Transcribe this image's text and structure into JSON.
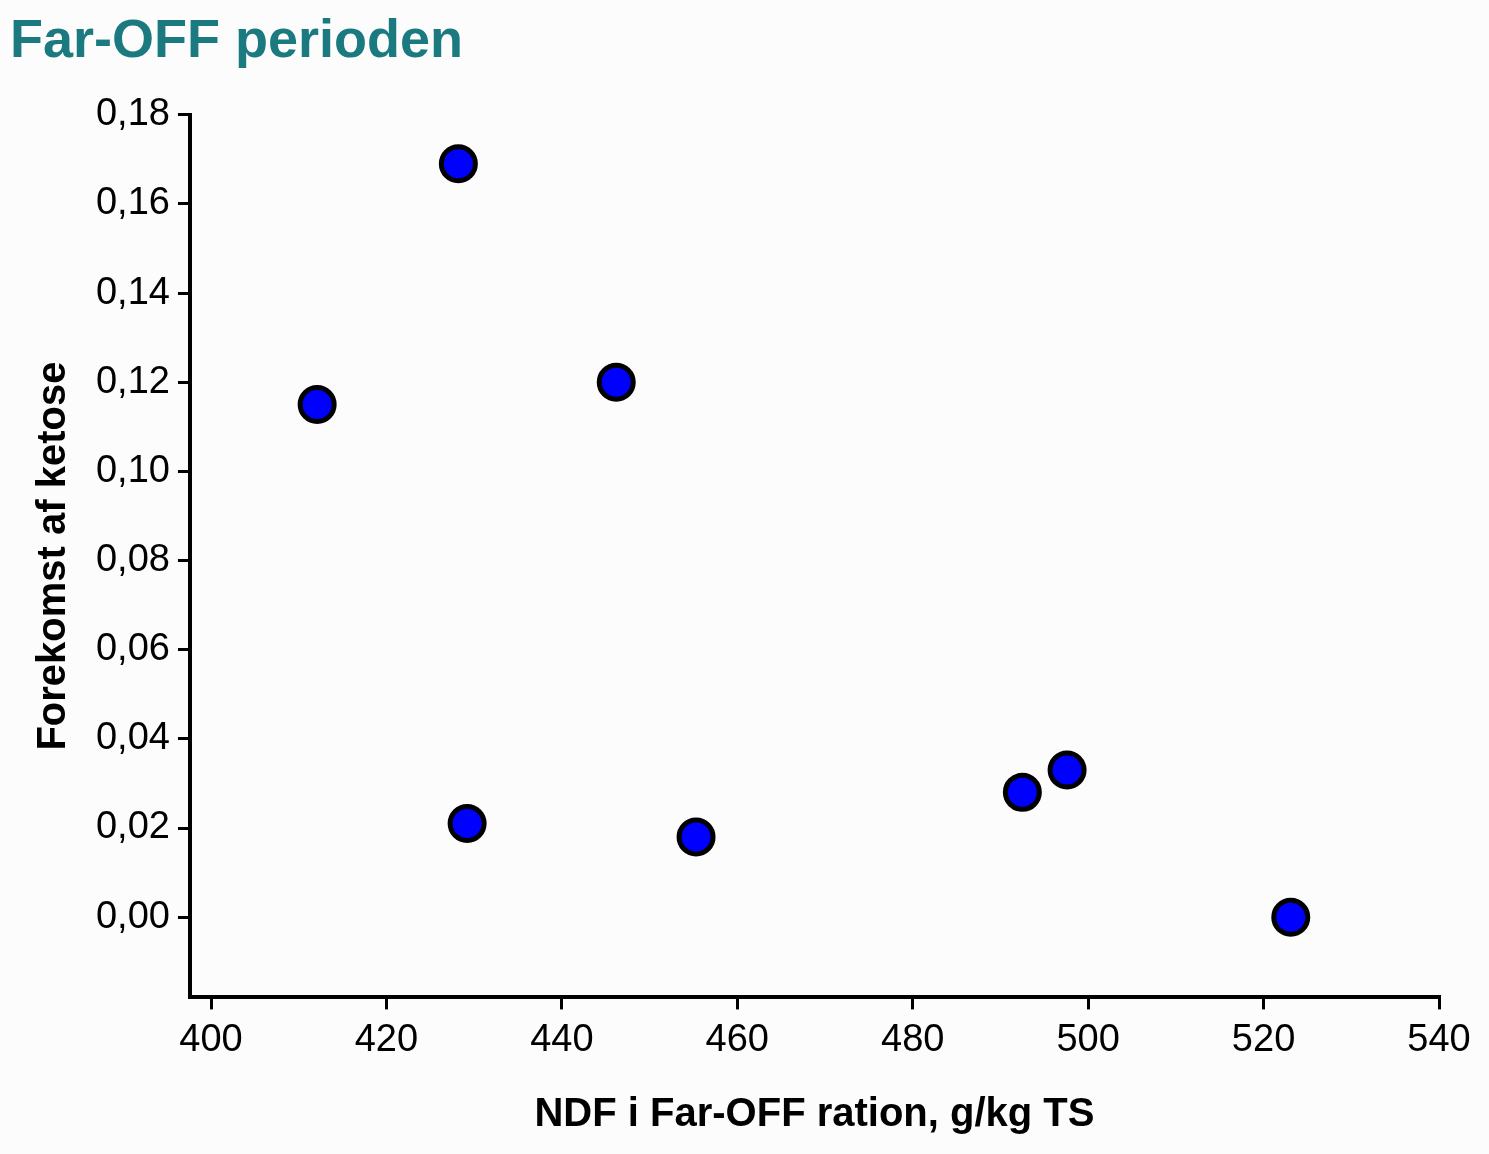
{
  "chart_data": {
    "type": "scatter",
    "title": "Far-OFF perioden",
    "xlabel": "NDF i Far-OFF ration, g/kg TS",
    "ylabel": "Forekomst af ketose",
    "x": [
      412.1,
      428.2,
      446.2,
      429.2,
      455.3,
      492.5,
      497.6,
      523.1
    ],
    "series": [
      {
        "color": "#0000ff",
        "values": [
          0.115,
          0.169,
          0.12,
          0.021,
          0.018,
          0.028,
          0.033,
          0.0
        ]
      }
    ],
    "xlim": [
      397.6,
      540
    ],
    "xticks": [
      400,
      420,
      440,
      460,
      480,
      500,
      520,
      540
    ],
    "ylim": [
      -0.018,
      0.18
    ],
    "yticks": [
      {
        "value": 0,
        "label": "0,00"
      },
      {
        "value": 0.02,
        "label": "0,02"
      },
      {
        "value": 0.04,
        "label": "0,04"
      },
      {
        "value": 0.06,
        "label": "0,06"
      },
      {
        "value": 0.08,
        "label": "0,08"
      },
      {
        "value": 0.1,
        "label": "0,10"
      },
      {
        "value": 0.12,
        "label": "0,12"
      },
      {
        "value": 0.14,
        "label": "0,14"
      },
      {
        "value": 0.16,
        "label": "0,16"
      },
      {
        "value": 0.18,
        "label": "0,18"
      }
    ],
    "grid": false,
    "legend": false,
    "marker": "circle"
  }
}
